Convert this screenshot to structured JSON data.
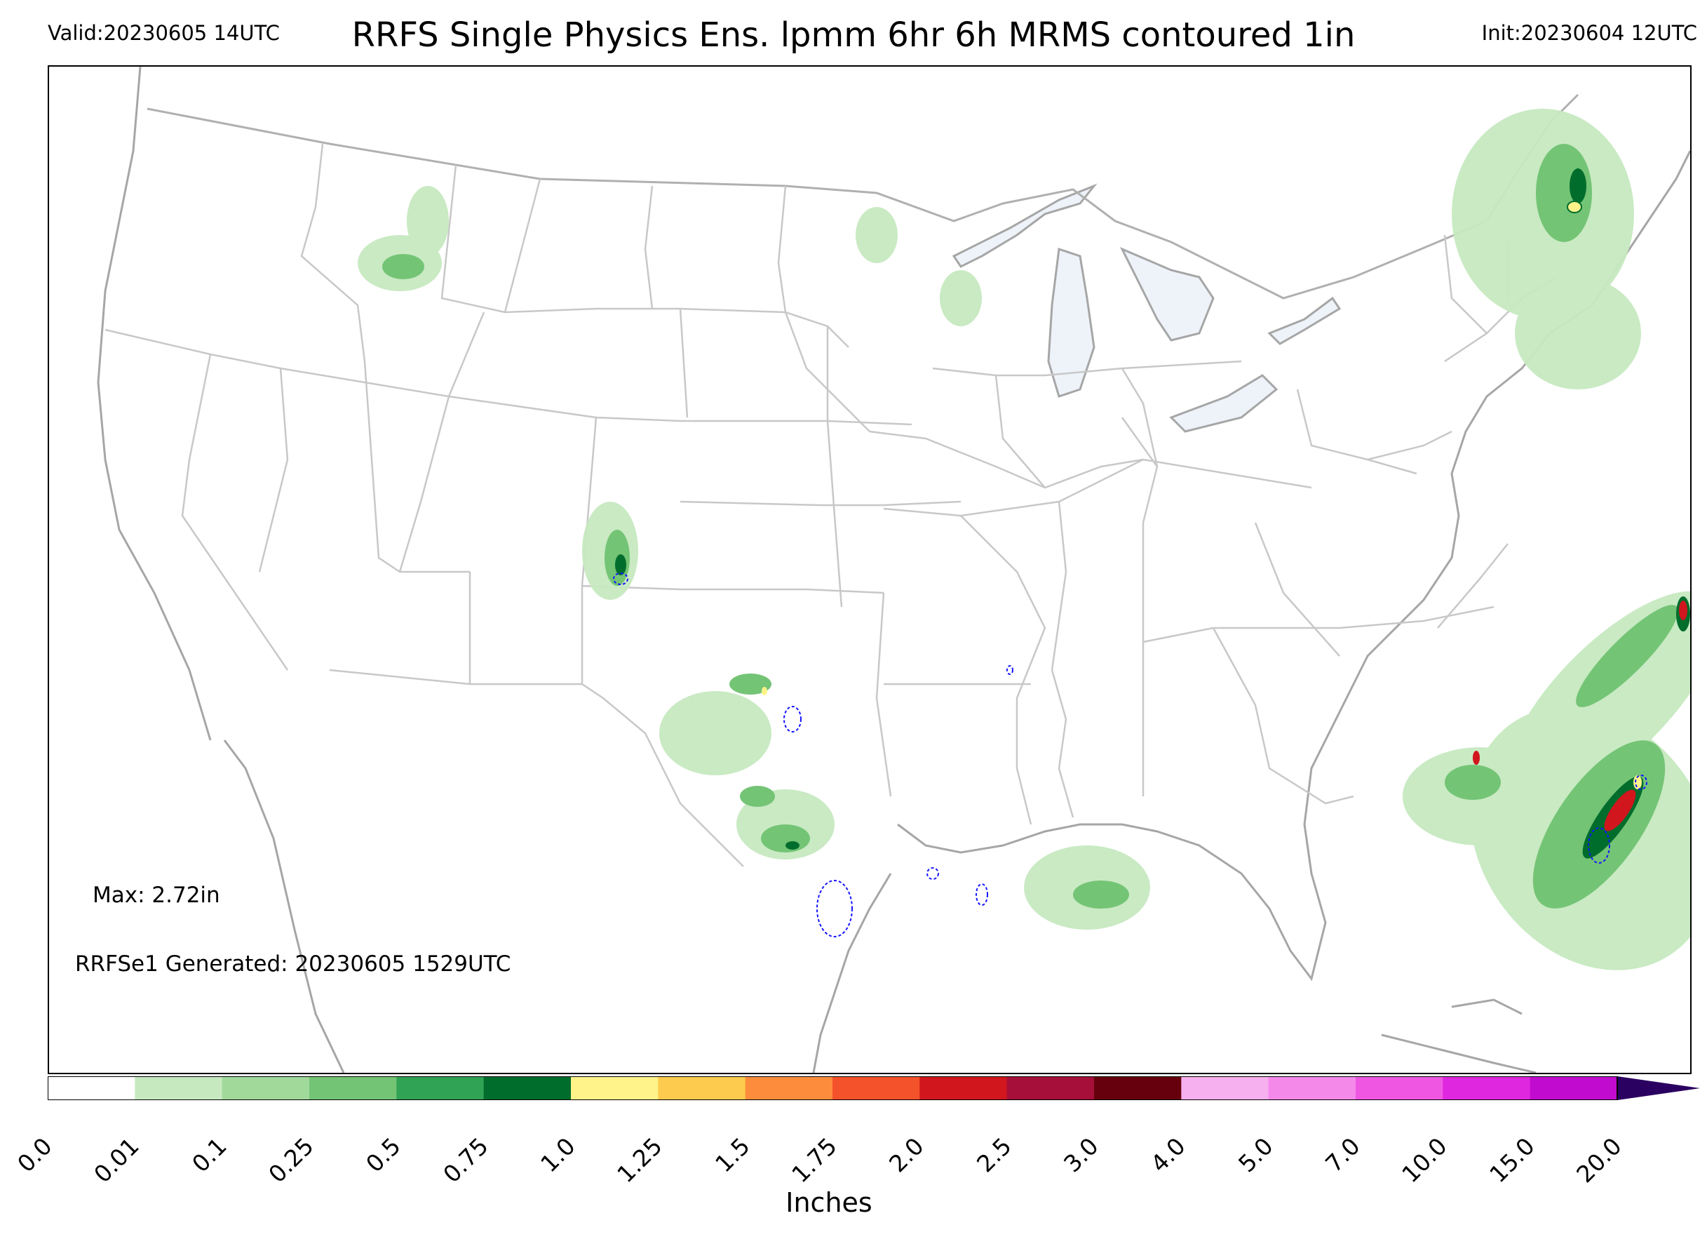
{
  "header": {
    "valid": "Valid:20230605 14UTC",
    "title": "RRFS Single Physics Ens. lpmm 6hr 6h MRMS contoured 1in",
    "init": "Init:20230604 12UTC"
  },
  "annotations": {
    "max": "Max: 2.72in",
    "generated": "RRFSe1 Generated: 20230605 1529UTC"
  },
  "colorbar": {
    "label": "Inches",
    "ticks": [
      "0.0",
      "0.01",
      "0.1",
      "0.25",
      "0.5",
      "0.75",
      "1.0",
      "1.25",
      "1.5",
      "1.75",
      "2.0",
      "2.5",
      "3.0",
      "4.0",
      "5.0",
      "7.0",
      "10.0",
      "15.0",
      "20.0"
    ],
    "colors": [
      "#ffffff",
      "#c7e9c0",
      "#a1d99b",
      "#74c476",
      "#31a354",
      "#006d2c",
      "#fff38a",
      "#fdcc4f",
      "#fd8d3c",
      "#f4522b",
      "#d1161d",
      "#a50f3a",
      "#67000d",
      "#f7b0ef",
      "#f589ea",
      "#ef57e3",
      "#df27df",
      "#c10ccf",
      "#8a07b8"
    ],
    "extend_color": "#2a0060"
  },
  "map_colors": {
    "state_lines": "#c4c4c4",
    "coast_lines": "#a6a6a6",
    "lakes": "#eef3fa",
    "light_green": "#a8dca0",
    "mid_green": "#4daf4a",
    "dark_green": "#006d2c",
    "heavy_red": "#d1161d",
    "heavy_yellow": "#fff38a",
    "mrms_contour": "#1515ff"
  }
}
